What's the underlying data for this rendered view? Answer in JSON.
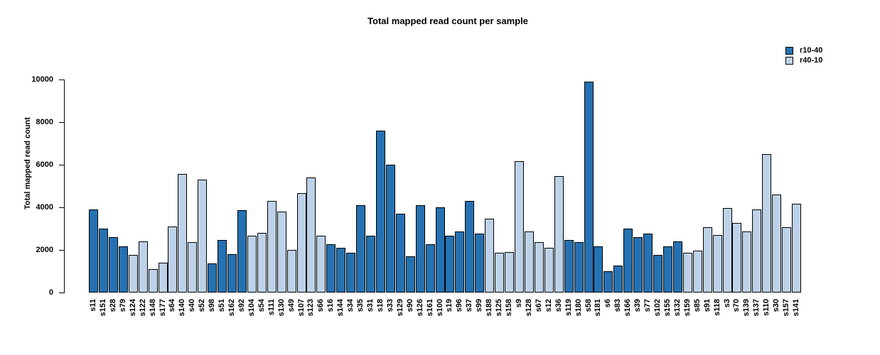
{
  "title": "Total mapped read count per sample",
  "chart_data": {
    "type": "bar",
    "title": "Total mapped read count per sample",
    "xlabel": "",
    "ylabel": "Total mapped read count",
    "ylim": [
      0,
      10000
    ],
    "yticks": [
      0,
      2000,
      4000,
      6000,
      8000,
      10000
    ],
    "grid": false,
    "legend_position": "top-right",
    "bar_border_color": "#000000",
    "series": [
      {
        "name": "r10-40",
        "color": "#2571B1"
      },
      {
        "name": "r40-10",
        "color": "#BDD2E8"
      }
    ],
    "categories": [
      "s11",
      "s151",
      "s28",
      "s79",
      "s124",
      "s122",
      "s148",
      "s177",
      "s64",
      "s140",
      "s40",
      "s52",
      "s98",
      "s51",
      "s162",
      "s92",
      "s104",
      "s54",
      "s111",
      "s130",
      "s49",
      "s107",
      "s123",
      "s66",
      "s16",
      "s144",
      "s34",
      "s35",
      "s31",
      "s18",
      "s33",
      "s129",
      "s90",
      "s126",
      "s161",
      "s100",
      "s19",
      "s96",
      "s37",
      "s99",
      "s188",
      "s125",
      "s158",
      "s9",
      "s128",
      "s67",
      "s12",
      "s36",
      "s119",
      "s180",
      "s58",
      "s181",
      "s6",
      "s83",
      "s166",
      "s39",
      "s77",
      "s102",
      "s155",
      "s132",
      "s159",
      "s85",
      "s91",
      "s118",
      "s3",
      "s70",
      "s139",
      "s137",
      "s110",
      "s30",
      "s157",
      "s141"
    ],
    "values": [
      3900,
      3000,
      2600,
      2150,
      1750,
      2400,
      1100,
      1400,
      3100,
      5550,
      2350,
      5300,
      1350,
      2450,
      1800,
      3850,
      2650,
      2800,
      4300,
      3800,
      2000,
      4650,
      5400,
      2650,
      2250,
      2100,
      1850,
      4100,
      2650,
      7600,
      6000,
      3700,
      1700,
      4100,
      2250,
      4000,
      2650,
      2850,
      4300,
      2750,
      3450,
      1850,
      1900,
      6150,
      2850,
      2350,
      2100,
      5450,
      2450,
      2350,
      9900,
      2150,
      1000,
      1250,
      3000,
      2600,
      2750,
      1750,
      2150,
      2400,
      1850,
      1950,
      3050,
      2700,
      3950,
      3250,
      2850,
      3900,
      6500,
      4600,
      3050,
      4150
    ],
    "bar_series_index": [
      0,
      0,
      0,
      0,
      1,
      1,
      1,
      1,
      1,
      1,
      1,
      1,
      0,
      0,
      0,
      0,
      1,
      1,
      1,
      1,
      1,
      1,
      1,
      1,
      0,
      0,
      0,
      0,
      0,
      0,
      0,
      0,
      0,
      0,
      0,
      0,
      0,
      0,
      0,
      0,
      1,
      1,
      1,
      1,
      1,
      1,
      1,
      1,
      0,
      0,
      0,
      0,
      0,
      0,
      0,
      0,
      0,
      0,
      0,
      0,
      1,
      1,
      1,
      1,
      1,
      1,
      1,
      1,
      1,
      1,
      1,
      1
    ]
  }
}
